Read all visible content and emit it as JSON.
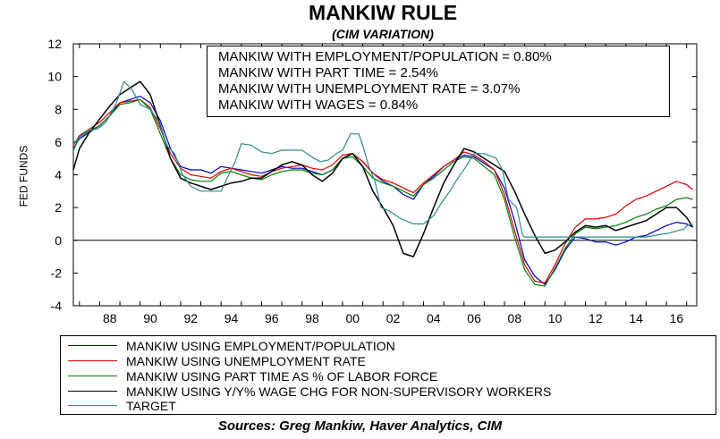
{
  "chart_data": {
    "type": "line",
    "title": "MANKIW RULE",
    "subtitle": "(CIM VARIATION)",
    "ylabel": "FED FUNDS",
    "xlabel": "",
    "ylim": [
      -4,
      12
    ],
    "xlim": [
      1986.7,
      2017.5
    ],
    "yticks": [
      "12",
      "10",
      "8",
      "6",
      "4",
      "2",
      "0",
      "-2",
      "-4"
    ],
    "xticks": [
      "88",
      "90",
      "92",
      "94",
      "96",
      "98",
      "00",
      "02",
      "04",
      "06",
      "08",
      "10",
      "12",
      "14",
      "16"
    ],
    "annotations": [
      "MANKIW WITH EMPLOYMENT/POPULATION = 0.80%",
      "MANKIW WITH PART TIME = 2.54%",
      "MANKIW WITH UNEMPLOYMENT RATE = 3.07%",
      "MANKIW WITH WAGES = 0.84%"
    ],
    "legend_position": "bottom",
    "series": [
      {
        "name": "MANKIW USING EMPLOYMENT/POPULATION",
        "color": "#0000c0",
        "x": [
          1986.7,
          1987.0,
          1987.5,
          1988.0,
          1988.5,
          1989.0,
          1989.5,
          1990.0,
          1990.5,
          1991.0,
          1991.5,
          1992.0,
          1992.5,
          1993.0,
          1993.5,
          1994.0,
          1994.5,
          1995.0,
          1995.5,
          1996.0,
          1996.5,
          1997.0,
          1997.5,
          1998.0,
          1998.5,
          1999.0,
          1999.5,
          2000.0,
          2000.5,
          2001.0,
          2001.5,
          2002.0,
          2002.5,
          2003.0,
          2003.5,
          2004.0,
          2004.5,
          2005.0,
          2005.5,
          2006.0,
          2006.5,
          2007.0,
          2007.5,
          2008.0,
          2008.5,
          2009.0,
          2009.5,
          2010.0,
          2010.5,
          2011.0,
          2011.5,
          2012.0,
          2012.5,
          2013.0,
          2013.5,
          2014.0,
          2014.5,
          2015.0,
          2015.5,
          2016.0,
          2016.5,
          2017.0,
          2017.3
        ],
        "values": [
          5.6,
          6.2,
          6.6,
          7.0,
          7.6,
          8.4,
          8.6,
          8.8,
          8.4,
          7.3,
          5.6,
          4.5,
          4.3,
          4.3,
          4.1,
          4.5,
          4.4,
          4.3,
          4.2,
          4.1,
          4.3,
          4.5,
          4.4,
          4.4,
          4.2,
          4.0,
          4.3,
          5.0,
          5.3,
          4.8,
          4.1,
          3.6,
          3.3,
          2.8,
          2.5,
          3.4,
          3.9,
          4.5,
          4.9,
          5.2,
          5.1,
          4.7,
          4.3,
          3.2,
          1.2,
          -1.2,
          -2.2,
          -2.7,
          -1.8,
          -0.6,
          0.2,
          0.1,
          -0.1,
          -0.1,
          -0.3,
          -0.1,
          0.2,
          0.3,
          0.6,
          0.9,
          1.1,
          1.0,
          0.8
        ]
      },
      {
        "name": "MANKIW USING UNEMPLOYMENT RATE",
        "color": "#e00000",
        "x": [
          1986.7,
          1987.0,
          1987.5,
          1988.0,
          1988.5,
          1989.0,
          1989.5,
          1990.0,
          1990.5,
          1991.0,
          1991.5,
          1992.0,
          1992.5,
          1993.0,
          1993.5,
          1994.0,
          1994.5,
          1995.0,
          1995.5,
          1996.0,
          1996.5,
          1997.0,
          1997.5,
          1998.0,
          1998.5,
          1999.0,
          1999.5,
          2000.0,
          2000.5,
          2001.0,
          2001.5,
          2002.0,
          2002.5,
          2003.0,
          2003.5,
          2004.0,
          2004.5,
          2005.0,
          2005.5,
          2006.0,
          2006.5,
          2007.0,
          2007.5,
          2008.0,
          2008.5,
          2009.0,
          2009.5,
          2010.0,
          2010.5,
          2011.0,
          2011.5,
          2012.0,
          2012.5,
          2013.0,
          2013.5,
          2014.0,
          2014.5,
          2015.0,
          2015.5,
          2016.0,
          2016.5,
          2017.0,
          2017.3
        ],
        "values": [
          5.8,
          6.4,
          6.8,
          7.2,
          7.8,
          8.4,
          8.5,
          8.6,
          8.1,
          6.8,
          5.3,
          4.4,
          4.0,
          3.9,
          3.8,
          4.2,
          4.4,
          4.2,
          4.0,
          3.9,
          4.2,
          4.4,
          4.5,
          4.6,
          4.4,
          4.3,
          4.6,
          5.2,
          5.3,
          4.8,
          4.1,
          3.7,
          3.5,
          3.2,
          2.9,
          3.5,
          4.0,
          4.5,
          4.9,
          5.4,
          5.2,
          4.8,
          4.3,
          2.8,
          0.6,
          -1.5,
          -2.5,
          -2.6,
          -1.5,
          -0.2,
          0.8,
          1.3,
          1.3,
          1.4,
          1.6,
          2.1,
          2.5,
          2.7,
          3.0,
          3.3,
          3.6,
          3.4,
          3.1
        ]
      },
      {
        "name": "MANKIW USING PART TIME AS % OF LABOR FORCE",
        "color": "#008000",
        "x": [
          1986.7,
          1987.0,
          1987.5,
          1988.0,
          1988.5,
          1989.0,
          1989.5,
          1990.0,
          1990.5,
          1991.0,
          1991.5,
          1992.0,
          1992.5,
          1993.0,
          1993.5,
          1994.0,
          1994.5,
          1995.0,
          1995.5,
          1996.0,
          1996.5,
          1997.0,
          1997.5,
          1998.0,
          1998.5,
          1999.0,
          1999.5,
          2000.0,
          2000.5,
          2001.0,
          2001.5,
          2002.0,
          2002.5,
          2003.0,
          2003.5,
          2004.0,
          2004.5,
          2005.0,
          2005.5,
          2006.0,
          2006.5,
          2007.0,
          2007.5,
          2008.0,
          2008.5,
          2009.0,
          2009.5,
          2010.0,
          2010.5,
          2011.0,
          2011.5,
          2012.0,
          2012.5,
          2013.0,
          2013.5,
          2014.0,
          2014.5,
          2015.0,
          2015.5,
          2016.0,
          2016.5,
          2017.0,
          2017.3
        ],
        "values": [
          5.5,
          6.3,
          6.7,
          7.0,
          7.6,
          8.3,
          8.4,
          8.6,
          8.0,
          6.5,
          5.0,
          4.0,
          3.7,
          3.6,
          3.6,
          4.1,
          4.2,
          4.0,
          3.8,
          3.7,
          4.0,
          4.2,
          4.3,
          4.3,
          4.1,
          4.0,
          4.3,
          5.0,
          5.1,
          4.5,
          3.8,
          3.5,
          3.3,
          3.0,
          2.7,
          3.4,
          3.8,
          4.3,
          4.8,
          5.1,
          5.0,
          4.5,
          4.0,
          2.5,
          0.2,
          -1.8,
          -2.7,
          -2.8,
          -1.7,
          -0.5,
          0.4,
          0.8,
          0.7,
          0.8,
          0.9,
          1.1,
          1.4,
          1.6,
          1.9,
          2.1,
          2.5,
          2.6,
          2.5
        ]
      },
      {
        "name": "MANKIW USING Y/Y% WAGE CHG FOR NON-SUPERVISORY WORKERS",
        "color": "#000000",
        "x": [
          1986.7,
          1987.0,
          1987.5,
          1988.0,
          1988.5,
          1989.0,
          1989.5,
          1990.0,
          1990.5,
          1991.0,
          1991.5,
          1992.0,
          1992.5,
          1993.0,
          1993.5,
          1994.0,
          1994.5,
          1995.0,
          1995.5,
          1996.0,
          1996.5,
          1997.0,
          1997.5,
          1998.0,
          1998.5,
          1999.0,
          1999.5,
          2000.0,
          2000.5,
          2001.0,
          2001.5,
          2002.0,
          2002.5,
          2003.0,
          2003.5,
          2004.0,
          2004.5,
          2005.0,
          2005.5,
          2006.0,
          2006.5,
          2007.0,
          2007.5,
          2008.0,
          2008.5,
          2009.0,
          2009.5,
          2010.0,
          2010.5,
          2011.0,
          2011.5,
          2012.0,
          2012.5,
          2013.0,
          2013.5,
          2014.0,
          2014.5,
          2015.0,
          2015.5,
          2016.0,
          2016.5,
          2017.0,
          2017.3
        ],
        "values": [
          4.3,
          5.6,
          6.6,
          7.4,
          8.2,
          8.9,
          9.3,
          9.7,
          8.9,
          7.0,
          5.0,
          3.8,
          3.5,
          3.3,
          3.1,
          3.3,
          3.5,
          3.6,
          3.8,
          3.8,
          4.2,
          4.6,
          4.8,
          4.6,
          4.0,
          3.6,
          4.1,
          5.0,
          5.3,
          4.5,
          3.0,
          2.0,
          0.9,
          -0.8,
          -1.0,
          0.4,
          2.0,
          3.5,
          4.6,
          5.6,
          5.4,
          5.0,
          4.6,
          4.2,
          3.0,
          1.6,
          0.3,
          -0.8,
          -0.6,
          -0.1,
          0.5,
          0.9,
          0.8,
          0.9,
          0.6,
          0.8,
          1.0,
          1.2,
          1.6,
          2.0,
          2.0,
          1.4,
          0.8
        ]
      },
      {
        "name": "TARGET",
        "color": "#2e8b8b",
        "x": [
          1986.7,
          1987.0,
          1987.4,
          1987.9,
          1988.3,
          1988.8,
          1989.2,
          1989.6,
          1990.0,
          1990.5,
          1990.9,
          1991.3,
          1991.7,
          1992.1,
          1992.5,
          1993.0,
          1993.6,
          1994.0,
          1994.3,
          1994.7,
          1995.0,
          1995.5,
          1996.0,
          1996.5,
          1997.0,
          1997.5,
          1998.0,
          1998.6,
          1998.9,
          1999.3,
          1999.7,
          2000.0,
          2000.4,
          2000.8,
          2001.0,
          2001.3,
          2001.6,
          2001.9,
          2002.3,
          2002.9,
          2003.5,
          2004.0,
          2004.5,
          2004.9,
          2005.3,
          2005.7,
          2006.1,
          2006.5,
          2007.0,
          2007.6,
          2007.9,
          2008.2,
          2008.6,
          2008.9,
          2009.0,
          2010.0,
          2011.0,
          2012.0,
          2013.0,
          2014.0,
          2015.0,
          2015.9,
          2016.0,
          2016.9,
          2017.0,
          2017.3
        ],
        "values": [
          5.9,
          6.3,
          6.7,
          6.8,
          7.2,
          8.3,
          9.7,
          9.2,
          8.3,
          8.0,
          7.3,
          5.8,
          5.3,
          4.0,
          3.3,
          3.0,
          3.0,
          3.0,
          3.8,
          4.8,
          5.9,
          5.8,
          5.4,
          5.3,
          5.5,
          5.5,
          5.5,
          5.0,
          4.8,
          4.9,
          5.3,
          5.5,
          6.5,
          6.5,
          5.8,
          4.5,
          3.6,
          2.0,
          1.8,
          1.3,
          1.0,
          1.0,
          1.5,
          2.3,
          3.0,
          3.8,
          4.5,
          5.3,
          5.3,
          5.0,
          4.3,
          2.5,
          2.0,
          0.3,
          0.2,
          0.2,
          0.2,
          0.2,
          0.2,
          0.2,
          0.2,
          0.4,
          0.4,
          0.7,
          0.9,
          1.0
        ]
      }
    ]
  },
  "sources": "Sources:  Greg Mankiw, Haver Analytics, CIM"
}
